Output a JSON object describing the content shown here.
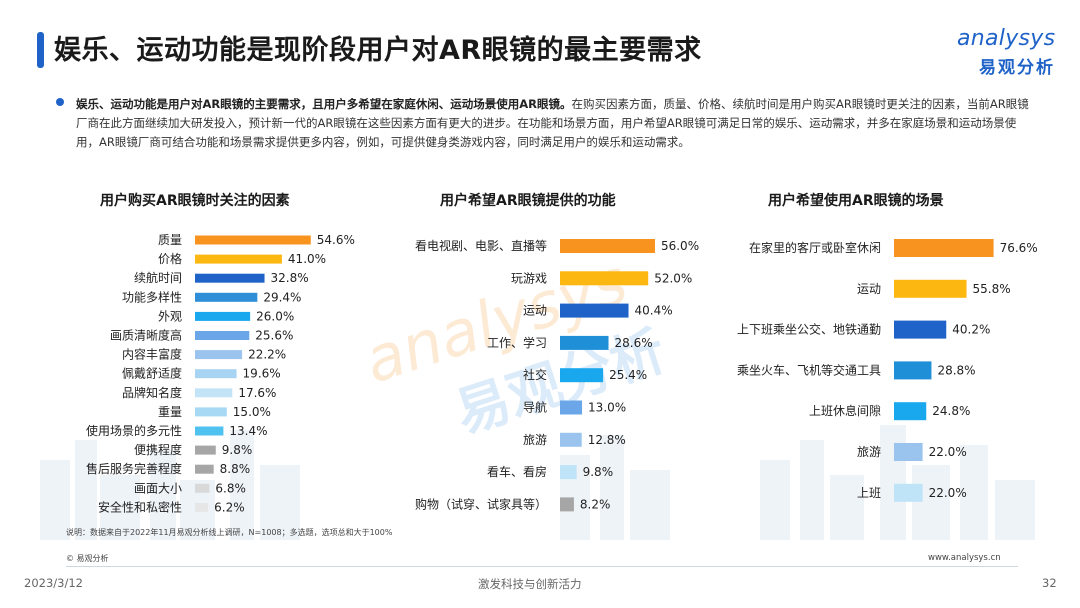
{
  "header": {
    "title": "娱乐、运动功能是现阶段用户对AR眼镜的最主要需求",
    "logo_text": "analysys",
    "logo_cn": "易观分析"
  },
  "summary": {
    "bold": "娱乐、运动功能是用户对AR眼镜的主要需求，且用户多希望在家庭休闲、运动场景使用AR眼镜。",
    "text": "在购买因素方面，质量、价格、续航时间是用户购买AR眼镜时更关注的因素，当前AR眼镜厂商在此方面继续加大研发投入，预计新一代的AR眼镜在这些因素方面有更大的进步。在功能和场景方面，用户希望AR眼镜可满足日常的娱乐、运动需求，并多在家庭场景和运动场景使用，AR眼镜厂商可结合功能和场景需求提供更多内容，例如，可提供健身类游戏内容，同时满足用户的娱乐和运动需求。"
  },
  "watermark": {
    "text": "analysys",
    "cn": "易观分析"
  },
  "chart_data": [
    {
      "type": "bar",
      "orientation": "horizontal",
      "title": "用户购买AR眼镜时关注的因素",
      "categories": [
        "质量",
        "价格",
        "续航时间",
        "功能多样性",
        "外观",
        "画质清晰度高",
        "内容丰富度",
        "佩戴舒适度",
        "品牌知名度",
        "重量",
        "使用场景的多元性",
        "便携程度",
        "售后服务完善程度",
        "画面大小",
        "安全性和私密性"
      ],
      "values": [
        54.6,
        41.0,
        32.8,
        29.4,
        26.0,
        25.6,
        22.2,
        19.6,
        17.6,
        15.0,
        13.4,
        9.8,
        8.8,
        6.8,
        6.2
      ],
      "labels": [
        "54.6%",
        "41.0%",
        "32.8%",
        "29.4%",
        "26.0%",
        "25.6%",
        "22.2%",
        "19.6%",
        "17.6%",
        "15.0%",
        "13.4%",
        "9.8%",
        "8.8%",
        "6.8%",
        "6.2%"
      ],
      "colors": [
        "#f7931e",
        "#fcb711",
        "#1f63c9",
        "#2e8fd8",
        "#19a8ee",
        "#6aa6e8",
        "#9ac4ee",
        "#a7d4f2",
        "#c3e4f7",
        "#a7d9f5",
        "#4fc2f0",
        "#a6a6a6",
        "#a6a6a6",
        "#d9d9d9",
        "#e6e6e6"
      ],
      "xlim": [
        0,
        60
      ]
    },
    {
      "type": "bar",
      "orientation": "horizontal",
      "title": "用户希望AR眼镜提供的功能",
      "categories": [
        "看电视剧、电影、直播等",
        "玩游戏",
        "运动",
        "工作、学习",
        "社交",
        "导航",
        "旅游",
        "看车、看房",
        "购物（试穿、试家具等）"
      ],
      "values": [
        56.0,
        52.0,
        40.4,
        28.6,
        25.4,
        13.0,
        12.8,
        9.8,
        8.2
      ],
      "labels": [
        "56.0%",
        "52.0%",
        "40.4%",
        "28.6%",
        "25.4%",
        "13.0%",
        "12.8%",
        "9.8%",
        "8.2%"
      ],
      "colors": [
        "#f7931e",
        "#fcb711",
        "#1f63c9",
        "#1f8fd8",
        "#19a8ee",
        "#6aa6e8",
        "#9ac4ee",
        "#bfe3f7",
        "#a6a6a6"
      ],
      "xlim": [
        0,
        60
      ]
    },
    {
      "type": "bar",
      "orientation": "horizontal",
      "title": "用户希望使用AR眼镜的场景",
      "categories": [
        "在家里的客厅或卧室休闲",
        "运动",
        "上下班乘坐公交、地铁通勤",
        "乘坐火车、飞机等交通工具",
        "上班休息间隙",
        "旅游",
        "上班"
      ],
      "values": [
        76.6,
        55.8,
        40.2,
        28.8,
        24.8,
        22.0,
        22.0
      ],
      "labels": [
        "76.6%",
        "55.8%",
        "40.2%",
        "28.8%",
        "24.8%",
        "22.0%",
        "22.0%"
      ],
      "colors": [
        "#f7931e",
        "#fcb711",
        "#1f63c9",
        "#1f8fd8",
        "#19a8ee",
        "#9ac4ee",
        "#bfe3f7"
      ],
      "xlim": [
        0,
        80
      ]
    }
  ],
  "footer": {
    "note": "说明：数据来自于2022年11月易观分析线上调研，N=1008；多选题，选项总和大于100%",
    "copyright": "© 易观分析",
    "site": "www.analysys.cn",
    "date": "2023/3/12",
    "slogan": "激发科技与创新活力",
    "page": "32"
  }
}
